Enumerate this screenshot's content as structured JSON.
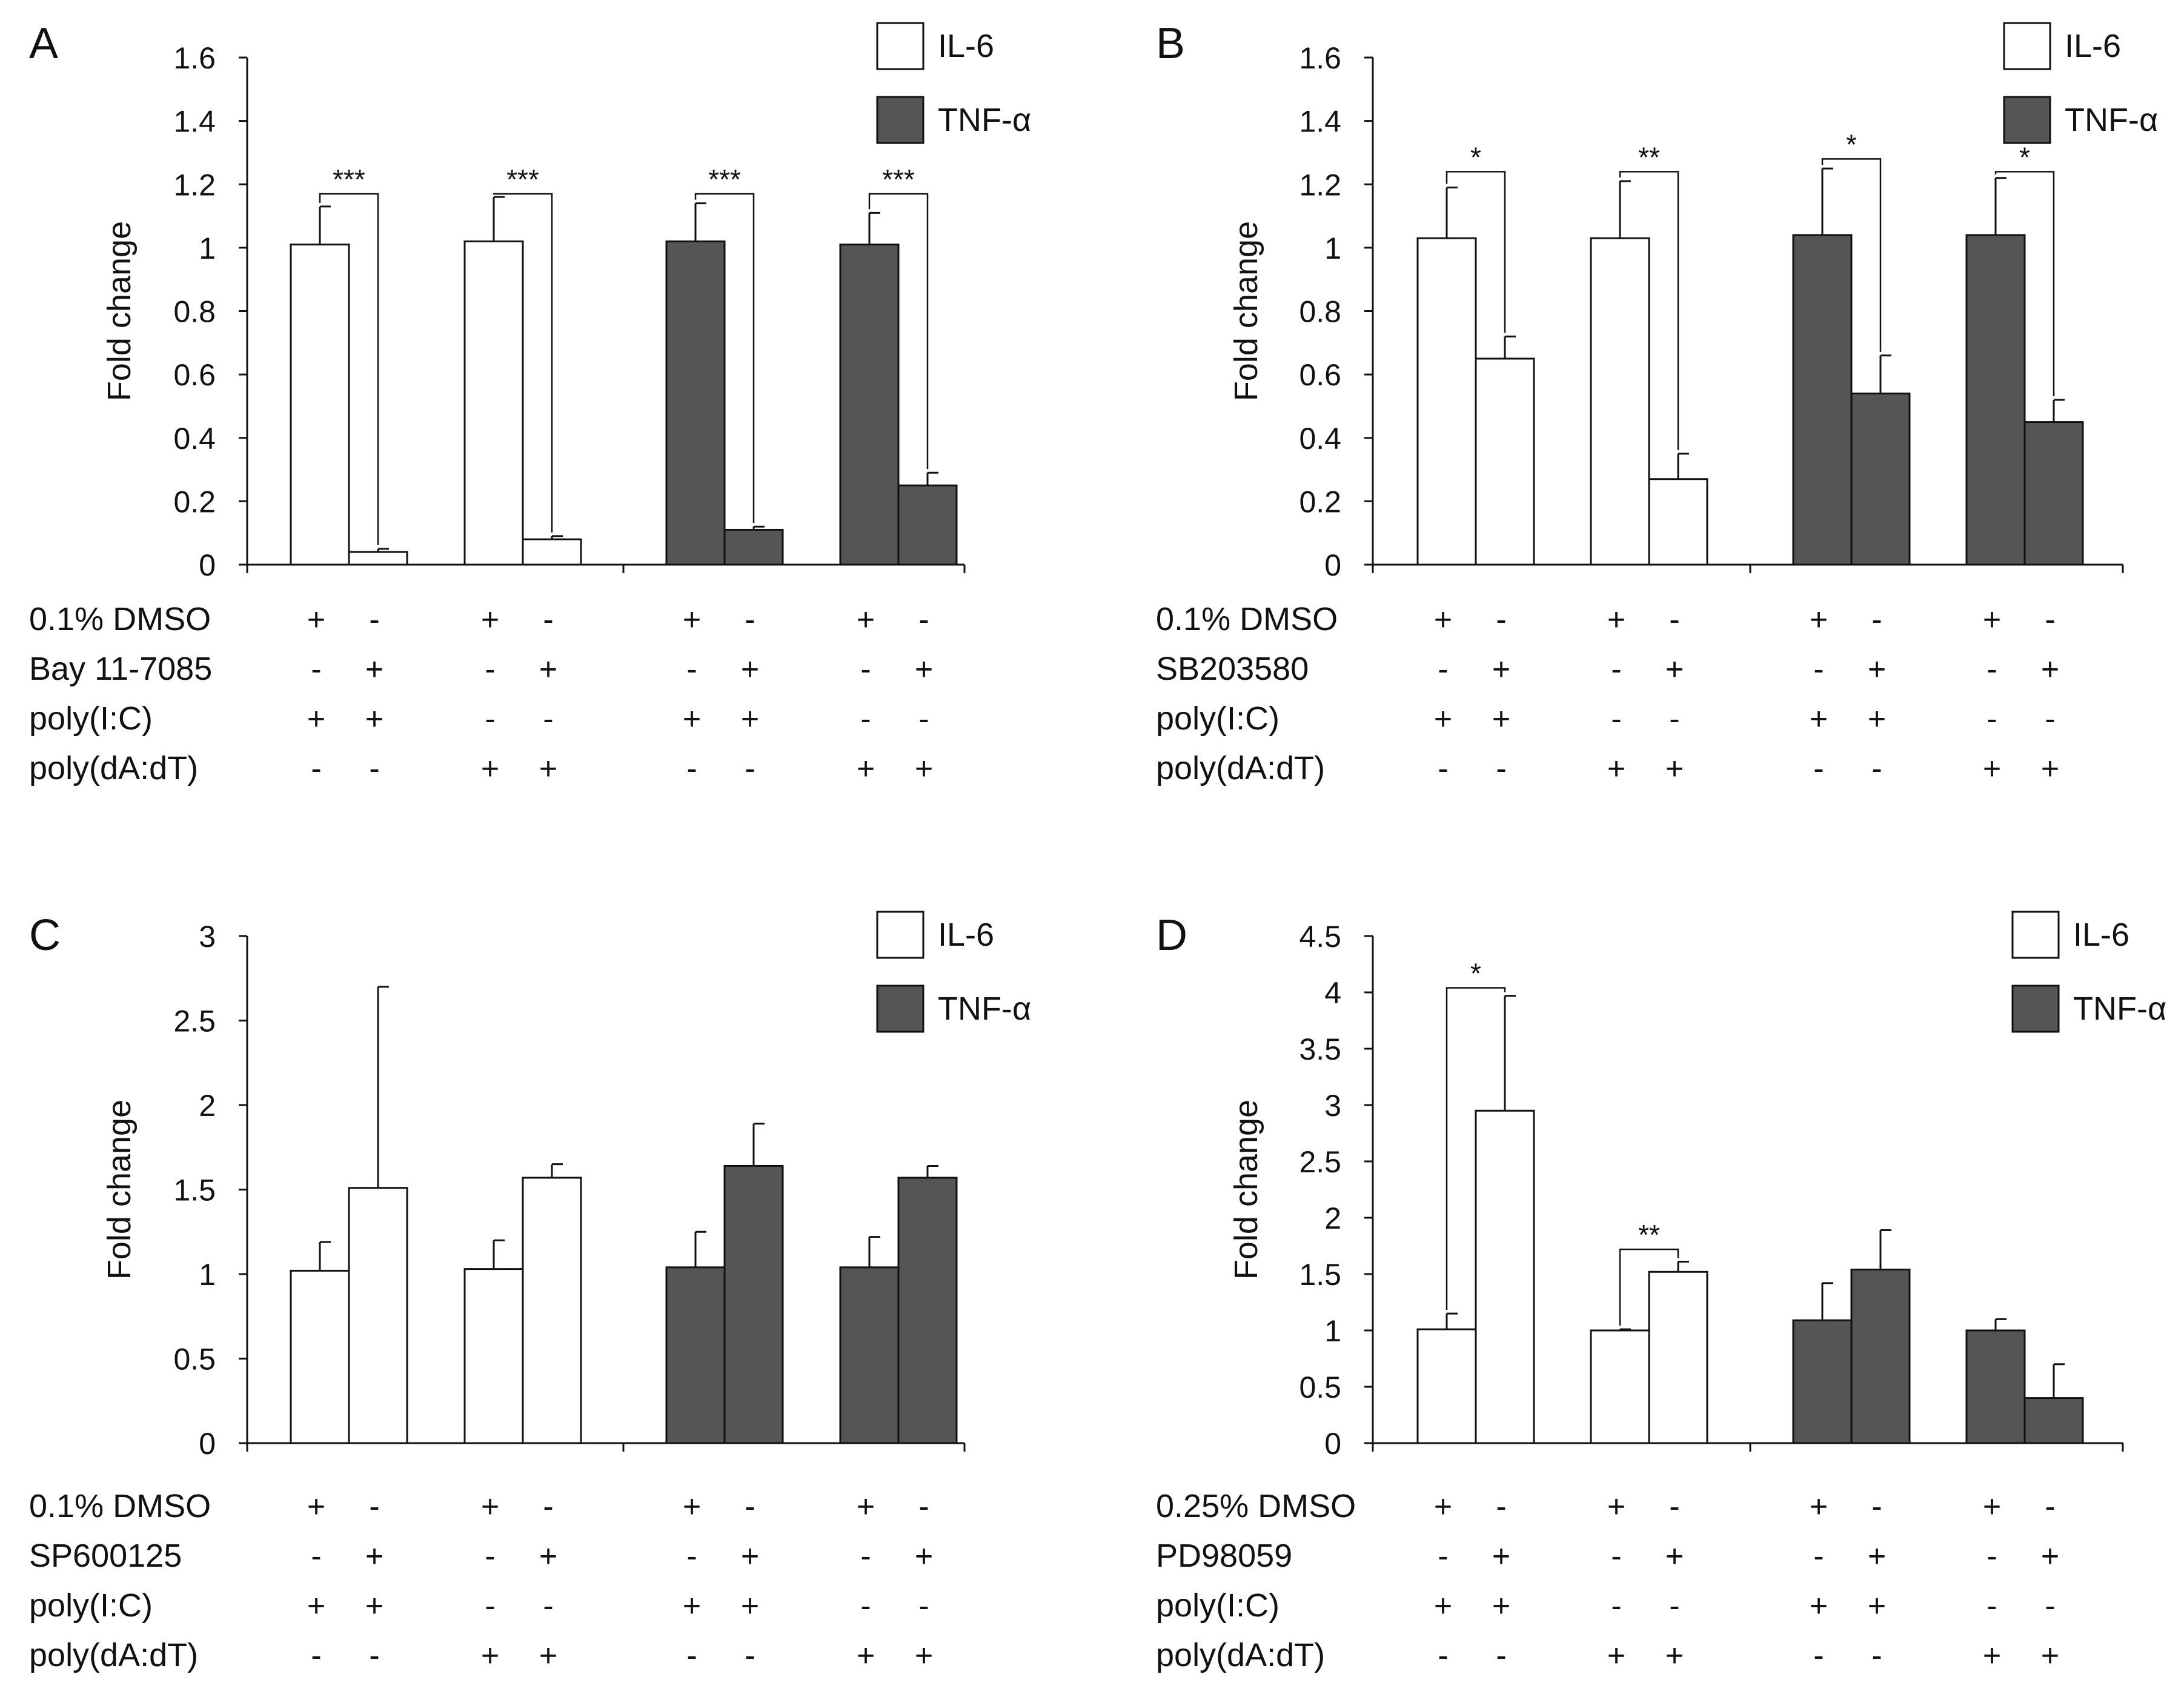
{
  "panels": [
    {
      "letter": "A",
      "chart_data": {
        "type": "bar",
        "ylabel": "Fold change",
        "ylim": [
          0,
          1.6
        ],
        "yticks": [
          "0",
          "0.2",
          "0.4",
          "0.6",
          "0.8",
          "1",
          "1.2",
          "1.4",
          "1.6"
        ],
        "legend": [
          "IL-6",
          "TNF-α"
        ],
        "legend_position": "top-right",
        "bars": [
          {
            "series": "IL-6",
            "value": 1.01,
            "error": 0.12
          },
          {
            "series": "IL-6",
            "value": 0.04,
            "error": 0.01
          },
          {
            "series": "IL-6",
            "value": 1.02,
            "error": 0.14
          },
          {
            "series": "IL-6",
            "value": 0.08,
            "error": 0.01
          },
          {
            "series": "TNF-α",
            "value": 1.02,
            "error": 0.12
          },
          {
            "series": "TNF-α",
            "value": 0.11,
            "error": 0.01
          },
          {
            "series": "TNF-α",
            "value": 1.01,
            "error": 0.1
          },
          {
            "series": "TNF-α",
            "value": 0.25,
            "error": 0.04
          }
        ],
        "significance": [
          {
            "pair": [
              0,
              1
            ],
            "label": "***",
            "level": 1.17
          },
          {
            "pair": [
              2,
              3
            ],
            "label": "***",
            "level": 1.17
          },
          {
            "pair": [
              4,
              5
            ],
            "label": "***",
            "level": 1.17
          },
          {
            "pair": [
              6,
              7
            ],
            "label": "***",
            "level": 1.17
          }
        ],
        "treatments": [
          {
            "label": "0.1% DMSO",
            "signs": [
              "+",
              "-",
              "+",
              "-",
              "+",
              "-",
              "+",
              "-"
            ]
          },
          {
            "label": "Bay 11-7085",
            "signs": [
              "-",
              "+",
              "-",
              "+",
              "-",
              "+",
              "-",
              "+"
            ]
          },
          {
            "label": "poly(I:C)",
            "signs": [
              "+",
              "+",
              "-",
              "-",
              "+",
              "+",
              "-",
              "-"
            ]
          },
          {
            "label": "poly(dA:dT)",
            "signs": [
              "-",
              "-",
              "+",
              "+",
              "-",
              "-",
              "+",
              "+"
            ]
          }
        ]
      }
    },
    {
      "letter": "B",
      "chart_data": {
        "type": "bar",
        "ylabel": "Fold change",
        "ylim": [
          0,
          1.6
        ],
        "yticks": [
          "0",
          "0.2",
          "0.4",
          "0.6",
          "0.8",
          "1",
          "1.2",
          "1.4",
          "1.6"
        ],
        "legend": [
          "IL-6",
          "TNF-α"
        ],
        "legend_position": "top-right",
        "bars": [
          {
            "series": "IL-6",
            "value": 1.03,
            "error": 0.16
          },
          {
            "series": "IL-6",
            "value": 0.65,
            "error": 0.07
          },
          {
            "series": "IL-6",
            "value": 1.03,
            "error": 0.18
          },
          {
            "series": "IL-6",
            "value": 0.27,
            "error": 0.08
          },
          {
            "series": "TNF-α",
            "value": 1.04,
            "error": 0.21
          },
          {
            "series": "TNF-α",
            "value": 0.54,
            "error": 0.12
          },
          {
            "series": "TNF-α",
            "value": 1.04,
            "error": 0.18
          },
          {
            "series": "TNF-α",
            "value": 0.45,
            "error": 0.07
          }
        ],
        "significance": [
          {
            "pair": [
              0,
              1
            ],
            "label": "*",
            "level": 1.24
          },
          {
            "pair": [
              2,
              3
            ],
            "label": "**",
            "level": 1.24
          },
          {
            "pair": [
              4,
              5
            ],
            "label": "*",
            "level": 1.28
          },
          {
            "pair": [
              6,
              7
            ],
            "label": "*",
            "level": 1.24
          }
        ],
        "treatments": [
          {
            "label": "0.1% DMSO",
            "signs": [
              "+",
              "-",
              "+",
              "-",
              "+",
              "-",
              "+",
              "-"
            ]
          },
          {
            "label": "SB203580",
            "signs": [
              "-",
              "+",
              "-",
              "+",
              "-",
              "+",
              "-",
              "+"
            ]
          },
          {
            "label": "poly(I:C)",
            "signs": [
              "+",
              "+",
              "-",
              "-",
              "+",
              "+",
              "-",
              "-"
            ]
          },
          {
            "label": "poly(dA:dT)",
            "signs": [
              "-",
              "-",
              "+",
              "+",
              "-",
              "-",
              "+",
              "+"
            ]
          }
        ]
      }
    },
    {
      "letter": "C",
      "chart_data": {
        "type": "bar",
        "ylabel": "Fold change",
        "ylim": [
          0,
          3
        ],
        "yticks": [
          "0",
          "0.5",
          "1",
          "1.5",
          "2",
          "2.5",
          "3"
        ],
        "legend": [
          "IL-6",
          "TNF-α"
        ],
        "legend_position": "top-right",
        "bars": [
          {
            "series": "IL-6",
            "value": 1.02,
            "error": 0.17
          },
          {
            "series": "IL-6",
            "value": 1.51,
            "error": 1.19
          },
          {
            "series": "IL-6",
            "value": 1.03,
            "error": 0.17
          },
          {
            "series": "IL-6",
            "value": 1.57,
            "error": 0.08
          },
          {
            "series": "TNF-α",
            "value": 1.04,
            "error": 0.21
          },
          {
            "series": "TNF-α",
            "value": 1.64,
            "error": 0.25
          },
          {
            "series": "TNF-α",
            "value": 1.04,
            "error": 0.18
          },
          {
            "series": "TNF-α",
            "value": 1.57,
            "error": 0.07
          }
        ],
        "significance": [],
        "treatments": [
          {
            "label": "0.1% DMSO",
            "signs": [
              "+",
              "-",
              "+",
              "-",
              "+",
              "-",
              "+",
              "-"
            ]
          },
          {
            "label": "SP600125",
            "signs": [
              "-",
              "+",
              "-",
              "+",
              "-",
              "+",
              "-",
              "+"
            ]
          },
          {
            "label": "poly(I:C)",
            "signs": [
              "+",
              "+",
              "-",
              "-",
              "+",
              "+",
              "-",
              "-"
            ]
          },
          {
            "label": "poly(dA:dT)",
            "signs": [
              "-",
              "-",
              "+",
              "+",
              "-",
              "-",
              "+",
              "+"
            ]
          }
        ]
      }
    },
    {
      "letter": "D",
      "chart_data": {
        "type": "bar",
        "ylabel": "Fold change",
        "ylim": [
          0,
          4.5
        ],
        "yticks": [
          "0",
          "0.5",
          "1",
          "1.5",
          "2",
          "2.5",
          "3",
          "3.5",
          "4",
          "4.5"
        ],
        "legend": [
          "IL-6",
          "TNF-α"
        ],
        "legend_position": "top-right",
        "bars": [
          {
            "series": "IL-6",
            "value": 1.01,
            "error": 0.14
          },
          {
            "series": "IL-6",
            "value": 2.95,
            "error": 1.02
          },
          {
            "series": "IL-6",
            "value": 1.0,
            "error": 0.01
          },
          {
            "series": "IL-6",
            "value": 1.52,
            "error": 0.09
          },
          {
            "series": "TNF-α",
            "value": 1.09,
            "error": 0.33
          },
          {
            "series": "TNF-α",
            "value": 1.54,
            "error": 0.35
          },
          {
            "series": "TNF-α",
            "value": 1.0,
            "error": 0.1
          },
          {
            "series": "TNF-α",
            "value": 0.4,
            "error": 0.3
          }
        ],
        "significance": [
          {
            "pair": [
              0,
              1
            ],
            "label": "*",
            "level": 4.04
          },
          {
            "pair": [
              2,
              3
            ],
            "label": "**",
            "level": 1.72
          }
        ],
        "treatments": [
          {
            "label": "0.25% DMSO",
            "signs": [
              "+",
              "-",
              "+",
              "-",
              "+",
              "-",
              "+",
              "-"
            ]
          },
          {
            "label": "PD98059",
            "signs": [
              "-",
              "+",
              "-",
              "+",
              "-",
              "+",
              "-",
              "+"
            ]
          },
          {
            "label": "poly(I:C)",
            "signs": [
              "+",
              "+",
              "-",
              "-",
              "+",
              "+",
              "-",
              "-"
            ]
          },
          {
            "label": "poly(dA:dT)",
            "signs": [
              "-",
              "-",
              "+",
              "+",
              "-",
              "-",
              "+",
              "+"
            ]
          }
        ]
      }
    }
  ],
  "colors": {
    "il6_fill": "#ffffff",
    "tnf_fill": "#555555",
    "stroke": "#111111"
  }
}
